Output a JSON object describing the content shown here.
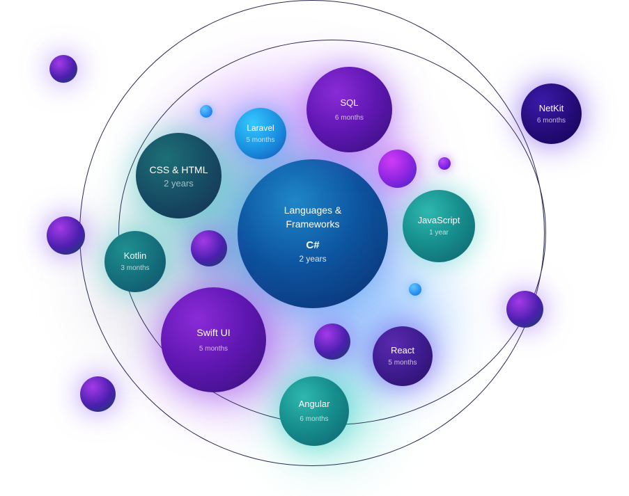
{
  "center": {
    "heading": "Languages &\nFrameworks",
    "language": "C#",
    "duration": "2 years"
  },
  "skills": {
    "sql": {
      "name": "SQL",
      "duration": "6 months"
    },
    "laravel": {
      "name": "Laravel",
      "duration": "5 months"
    },
    "css_html": {
      "name": "CSS & HTML",
      "duration": "2 years"
    },
    "javascript": {
      "name": "JavaScript",
      "duration": "1 year"
    },
    "kotlin": {
      "name": "Kotlin",
      "duration": "3 months"
    },
    "swift_ui": {
      "name": "Swift UI",
      "duration": "5 months"
    },
    "react": {
      "name": "React",
      "duration": "5 months"
    },
    "angular": {
      "name": "Angular",
      "duration": "6 months"
    },
    "netkit": {
      "name": "NetKit",
      "duration": "6 months"
    }
  },
  "colors": {
    "teal": "#17908e",
    "purple": "#5e16b0",
    "blue": "#1a8fe0",
    "navy": "#240b78",
    "ring": "#2a2a52"
  }
}
